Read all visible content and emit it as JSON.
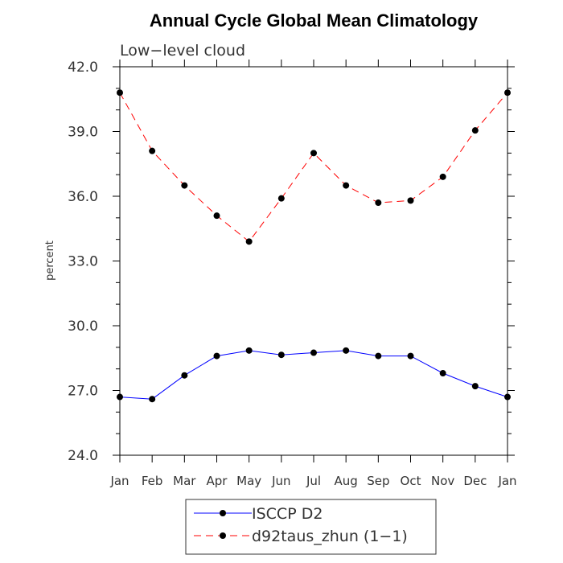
{
  "chart_data": {
    "type": "line",
    "title": "Annual Cycle Global Mean Climatology",
    "subtitle": "Low−level cloud",
    "ylabel": "percent",
    "xlabel": "",
    "ylim": [
      24.0,
      42.0
    ],
    "yticks": [
      "24.0",
      "27.0",
      "30.0",
      "33.0",
      "36.0",
      "39.0",
      "42.0"
    ],
    "categories": [
      "Jan",
      "Feb",
      "Mar",
      "Apr",
      "May",
      "Jun",
      "Jul",
      "Aug",
      "Sep",
      "Oct",
      "Nov",
      "Dec",
      "Jan"
    ],
    "grid": false,
    "legend_position": "bottom",
    "series": [
      {
        "name": "ISCCP D2",
        "color": "#0000ff",
        "dash": "solid",
        "values": [
          26.7,
          26.6,
          27.7,
          28.6,
          28.85,
          28.65,
          28.75,
          28.85,
          28.6,
          28.6,
          27.8,
          27.2,
          26.7
        ]
      },
      {
        "name": "d92taus_zhun (1−1)",
        "color": "#ff0000",
        "dash": "dashed",
        "values": [
          40.8,
          38.1,
          36.5,
          35.1,
          33.9,
          35.9,
          38.0,
          36.5,
          35.7,
          35.8,
          36.9,
          39.05,
          40.8
        ]
      }
    ]
  }
}
